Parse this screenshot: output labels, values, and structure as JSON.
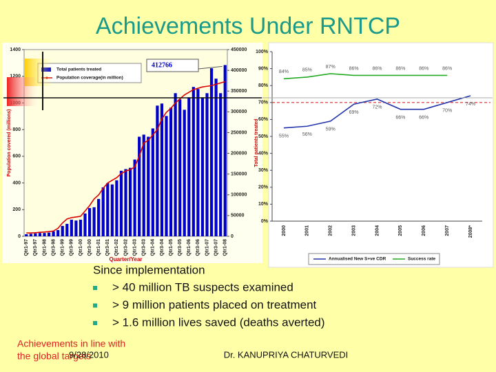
{
  "slide": {
    "title": "Achievements Under RNTCP",
    "heading": "Since implementation",
    "bullets": [
      "> 40 million TB suspects examined",
      "> 9 million patients placed on treatment",
      "> 1.6 million lives saved (deaths averted)"
    ],
    "note": [
      "Achievements in line with",
      "the global targets"
    ],
    "date": "9/28/2010",
    "author": "Dr. KANUPRIYA CHATURVEDI"
  },
  "chart_data": [
    {
      "type": "bar",
      "xlabel": "Quarter/Year",
      "ylabel": "Population covered (millions)",
      "y2label": "Total patients treated",
      "annotation": "412766",
      "categories": [
        "Qtr1-97",
        null,
        "Qtr3-97",
        null,
        "Qtr1-98",
        null,
        "Qtr3-98",
        null,
        "Qtr1-99",
        null,
        "Qtr3-99",
        null,
        "Qtr1-00",
        null,
        "Qtr3-00",
        null,
        "Qtr1-01",
        null,
        "Qtr3-01",
        null,
        "Qtr1-02",
        null,
        "Qtr3-02",
        null,
        "Qtr1-03",
        null,
        "Qtr3-03",
        null,
        "Qtr1-04",
        null,
        "Qtr3-04",
        null,
        "Qtr1-05",
        null,
        "Qtr3-05",
        null,
        "Qtr1-06",
        null,
        "Qtr3-06",
        null,
        "Qtr1-07",
        null,
        "Qtr3-07",
        null,
        "Qtr1-08"
      ],
      "series": [
        {
          "name": "Total patients treated",
          "color": "#0000cc",
          "type": "bar",
          "axis": "y2",
          "values": [
            5000,
            6000,
            7000,
            8000,
            8000,
            9000,
            12000,
            15000,
            25000,
            30000,
            40000,
            38000,
            40000,
            55000,
            68000,
            70000,
            90000,
            118000,
            128000,
            125000,
            135000,
            158000,
            162000,
            165000,
            185000,
            240000,
            245000,
            240000,
            260000,
            315000,
            320000,
            290000,
            310000,
            345000,
            330000,
            305000,
            335000,
            360000,
            355000,
            335000,
            345000,
            405000,
            380000,
            345000,
            412766
          ]
        },
        {
          "name": "Population coverage(in million)",
          "color": "#dd0000",
          "type": "line",
          "values": [
            25,
            25,
            27,
            30,
            32,
            35,
            40,
            60,
            100,
            130,
            140,
            145,
            150,
            190,
            230,
            280,
            310,
            360,
            400,
            420,
            440,
            470,
            490,
            500,
            520,
            600,
            700,
            720,
            760,
            800,
            880,
            930,
            960,
            1000,
            1030,
            1060,
            1080,
            1100,
            1110,
            1120,
            1125,
            1130,
            1140,
            1150,
            1160
          ]
        }
      ],
      "ylim": [
        0,
        1400
      ],
      "yticks": [
        0,
        200,
        400,
        600,
        800,
        1000,
        1200,
        1400
      ],
      "y2lim": [
        0,
        450000
      ],
      "y2ticks": [
        0,
        50000,
        100000,
        150000,
        200000,
        250000,
        300000,
        350000,
        400000,
        450000
      ],
      "grid": false
    },
    {
      "type": "line",
      "categories": [
        "2000",
        "2001",
        "2002",
        "2003",
        "2004",
        "2005",
        "2006",
        "2007",
        "2008*"
      ],
      "series": [
        {
          "name": "Annualised New S+ve CDR",
          "color": "#2233aa",
          "values": [
            55,
            56,
            59,
            69,
            72,
            66,
            66,
            70,
            74
          ],
          "value_labels": [
            "55%",
            "56%",
            "59%",
            "69%",
            "72%",
            "66%",
            "66%",
            "70%",
            "74%"
          ]
        },
        {
          "name": "Success rate",
          "color": "#22aa22",
          "values": [
            84,
            85,
            87,
            86,
            86,
            86,
            86,
            86,
            null
          ],
          "value_labels": [
            "84%",
            "85%",
            "87%",
            "86%",
            "86%",
            "86%",
            "86%",
            "86%",
            null
          ]
        }
      ],
      "target": 70,
      "target_color": "#dd2222",
      "ylim": [
        0,
        100
      ],
      "yticks": [
        {
          "value": 0,
          "label": "0%"
        },
        {
          "value": 10,
          "label": "10%"
        },
        {
          "value": 20,
          "label": "20%"
        },
        {
          "value": 30,
          "label": "30%"
        },
        {
          "value": 40,
          "label": "40%"
        },
        {
          "value": 50,
          "label": "50%"
        },
        {
          "value": 60,
          "label": "60%"
        },
        {
          "value": 70,
          "label": "70%"
        },
        {
          "value": 80,
          "label": "80%"
        },
        {
          "value": 90,
          "label": "90%"
        },
        {
          "value": 100,
          "label": "100%"
        }
      ],
      "grid": false
    }
  ]
}
